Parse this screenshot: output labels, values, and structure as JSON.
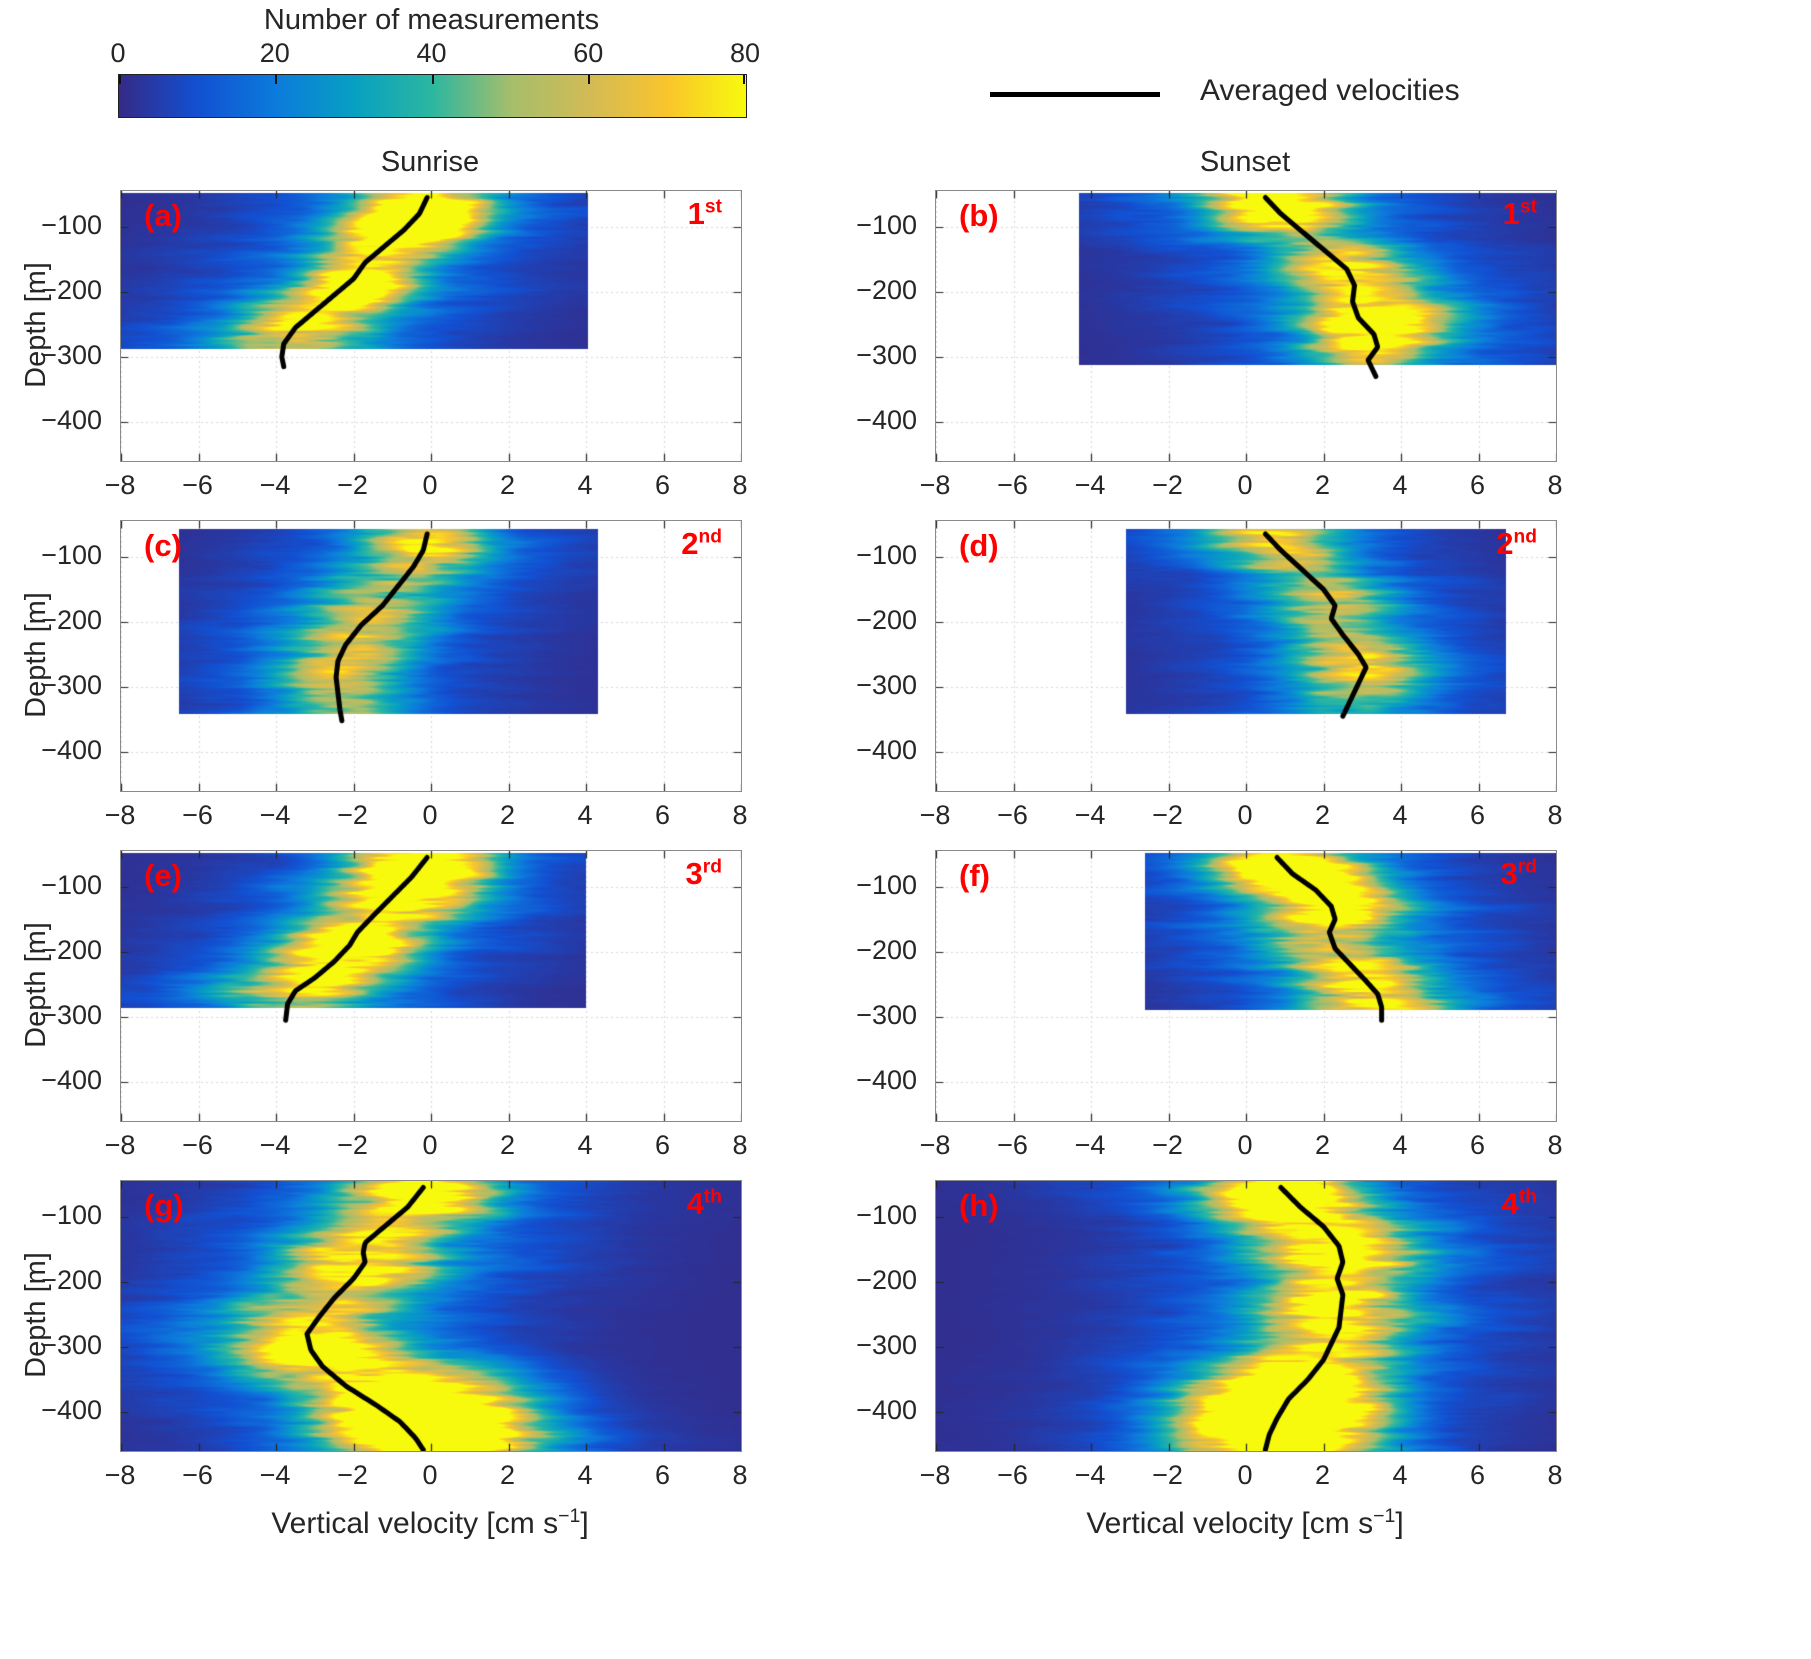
{
  "chart_data": {
    "type": "heatmap",
    "colorbar_title": "Number of measurements",
    "colorbar_range": [
      0,
      80
    ],
    "colorbar_ticks": [
      0,
      20,
      40,
      60,
      80
    ],
    "colormap": [
      "#352a87",
      "#1250d2",
      "#0c7bdc",
      "#07a0c2",
      "#2cb7a0",
      "#a5be6b",
      "#d2bb55",
      "#f9c52c",
      "#f8fa0d"
    ],
    "legend_label": "Averaged velocities",
    "legend_line_color": "#000000",
    "mean_line_color": "#000000",
    "annotation_color": "#ff0000",
    "columns": [
      "Sunrise",
      "Sunset"
    ],
    "xlabel": "Vertical velocity [cm s−1]",
    "xlabel_main": "Vertical velocity [cm s",
    "xlabel_sup": "−1",
    "xlabel_end": "]",
    "ylabel": "Depth [m]",
    "xlim": [
      -8,
      8
    ],
    "xticks": [
      -8,
      -6,
      -4,
      -2,
      0,
      2,
      4,
      6,
      8
    ],
    "ylim": [
      -460,
      -45
    ],
    "yticks": [
      -100,
      -200,
      -300,
      -400
    ],
    "grid": true,
    "panels": [
      {
        "id": "a",
        "tag": "(a)",
        "ordinal_num": "1",
        "ordinal_sup": "st",
        "column": "Sunrise",
        "extent": {
          "v": [
            -8,
            4.05
          ],
          "depth": [
            -48,
            -288
          ]
        },
        "ridge": {
          "amp": 30,
          "s1": 1.2,
          "halo": 18,
          "s2": 3.1
        },
        "hotspots": [
          {
            "v": -0.3,
            "d": -80,
            "amp": 72,
            "sx": 1.1,
            "sy": 26
          },
          {
            "v": -1.9,
            "d": -185,
            "amp": 68,
            "sx": 0.9,
            "sy": 22
          },
          {
            "v": -0.8,
            "d": -120,
            "amp": 42,
            "sx": 1.2,
            "sy": 25
          },
          {
            "v": -3.2,
            "d": -240,
            "amp": 30,
            "sx": 1.2,
            "sy": 28
          }
        ],
        "mean_profile": {
          "depth": [
            -55,
            -80,
            -105,
            -130,
            -155,
            -180,
            -205,
            -230,
            -255,
            -280,
            -300,
            -315
          ],
          "v": [
            -0.1,
            -0.3,
            -0.7,
            -1.2,
            -1.7,
            -2.0,
            -2.5,
            -3.0,
            -3.5,
            -3.8,
            -3.85,
            -3.8
          ]
        }
      },
      {
        "id": "b",
        "tag": "(b)",
        "ordinal_num": "1",
        "ordinal_sup": "st",
        "column": "Sunset",
        "extent": {
          "v": [
            -4.3,
            8
          ],
          "depth": [
            -48,
            -312
          ]
        },
        "ridge": {
          "amp": 30,
          "s1": 1.2,
          "halo": 18,
          "s2": 3.1
        },
        "hotspots": [
          {
            "v": 0.9,
            "d": -70,
            "amp": 62,
            "sx": 1.1,
            "sy": 24
          },
          {
            "v": 3.2,
            "d": -265,
            "amp": 55,
            "sx": 1.1,
            "sy": 28
          },
          {
            "v": 2.6,
            "d": -160,
            "amp": 36,
            "sx": 1.1,
            "sy": 25
          },
          {
            "v": 4.0,
            "d": -230,
            "amp": 28,
            "sx": 1.3,
            "sy": 30
          }
        ],
        "mean_profile": {
          "depth": [
            -55,
            -80,
            -110,
            -140,
            -165,
            -190,
            -215,
            -240,
            -265,
            -285,
            -305,
            -330
          ],
          "v": [
            0.5,
            0.9,
            1.5,
            2.1,
            2.6,
            2.8,
            2.75,
            2.9,
            3.3,
            3.4,
            3.15,
            3.35
          ]
        }
      },
      {
        "id": "c",
        "tag": "(c)",
        "ordinal_num": "2",
        "ordinal_sup": "nd",
        "column": "Sunrise",
        "extent": {
          "v": [
            -6.5,
            4.3
          ],
          "depth": [
            -58,
            -342
          ]
        },
        "ridge": {
          "amp": 26,
          "s1": 1.3,
          "halo": 14,
          "s2": 3.0
        },
        "hotspots": [
          {
            "v": -0.1,
            "d": -85,
            "amp": 38,
            "sx": 1.0,
            "sy": 24
          },
          {
            "v": -1.5,
            "d": -200,
            "amp": 26,
            "sx": 1.2,
            "sy": 30
          },
          {
            "v": -2.4,
            "d": -280,
            "amp": 24,
            "sx": 1.1,
            "sy": 30
          }
        ],
        "mean_profile": {
          "depth": [
            -65,
            -90,
            -115,
            -145,
            -175,
            -205,
            -235,
            -260,
            -285,
            -310,
            -335,
            -352
          ],
          "v": [
            -0.1,
            -0.2,
            -0.45,
            -0.85,
            -1.25,
            -1.8,
            -2.2,
            -2.4,
            -2.45,
            -2.4,
            -2.35,
            -2.3
          ]
        }
      },
      {
        "id": "d",
        "tag": "(d)",
        "ordinal_num": "2",
        "ordinal_sup": "nd",
        "column": "Sunset",
        "extent": {
          "v": [
            -3.1,
            6.7
          ],
          "depth": [
            -58,
            -342
          ]
        },
        "ridge": {
          "amp": 26,
          "s1": 1.3,
          "halo": 14,
          "s2": 3.0
        },
        "hotspots": [
          {
            "v": 1.0,
            "d": -80,
            "amp": 35,
            "sx": 1.0,
            "sy": 24
          },
          {
            "v": 3.0,
            "d": -265,
            "amp": 40,
            "sx": 1.1,
            "sy": 28
          },
          {
            "v": 2.3,
            "d": -170,
            "amp": 32,
            "sx": 1.0,
            "sy": 24
          }
        ],
        "mean_profile": {
          "depth": [
            -65,
            -90,
            -120,
            -150,
            -175,
            -195,
            -220,
            -250,
            -270,
            -295,
            -320,
            -345
          ],
          "v": [
            0.5,
            0.9,
            1.45,
            2.0,
            2.3,
            2.2,
            2.5,
            2.9,
            3.1,
            2.9,
            2.7,
            2.5
          ]
        }
      },
      {
        "id": "e",
        "tag": "(e)",
        "ordinal_num": "3",
        "ordinal_sup": "rd",
        "column": "Sunrise",
        "extent": {
          "v": [
            -8,
            4.0
          ],
          "depth": [
            -48,
            -286
          ]
        },
        "ridge": {
          "amp": 32,
          "s1": 1.25,
          "halo": 18,
          "s2": 3.1
        },
        "hotspots": [
          {
            "v": -0.2,
            "d": -75,
            "amp": 76,
            "sx": 1.2,
            "sy": 26
          },
          {
            "v": -1.9,
            "d": -185,
            "amp": 70,
            "sx": 1.0,
            "sy": 24
          },
          {
            "v": -0.9,
            "d": -120,
            "amp": 46,
            "sx": 1.2,
            "sy": 26
          },
          {
            "v": -3.0,
            "d": -235,
            "amp": 32,
            "sx": 1.2,
            "sy": 26
          }
        ],
        "mean_profile": {
          "depth": [
            -55,
            -85,
            -115,
            -145,
            -170,
            -190,
            -215,
            -240,
            -260,
            -280,
            -305
          ],
          "v": [
            -0.1,
            -0.5,
            -1.0,
            -1.5,
            -1.9,
            -2.1,
            -2.5,
            -3.0,
            -3.5,
            -3.7,
            -3.75
          ]
        }
      },
      {
        "id": "f",
        "tag": "(f)",
        "ordinal_num": "3",
        "ordinal_sup": "rd",
        "column": "Sunset",
        "extent": {
          "v": [
            -2.6,
            8
          ],
          "depth": [
            -48,
            -290
          ]
        },
        "ridge": {
          "amp": 34,
          "s1": 1.3,
          "halo": 18,
          "s2": 3.1
        },
        "hotspots": [
          {
            "v": 1.2,
            "d": -75,
            "amp": 72,
            "sx": 1.2,
            "sy": 26
          },
          {
            "v": 2.2,
            "d": -130,
            "amp": 58,
            "sx": 1.1,
            "sy": 24
          },
          {
            "v": 3.1,
            "d": -245,
            "amp": 46,
            "sx": 1.1,
            "sy": 26
          }
        ],
        "mean_profile": {
          "depth": [
            -55,
            -80,
            -105,
            -130,
            -150,
            -170,
            -195,
            -220,
            -245,
            -265,
            -285,
            -305
          ],
          "v": [
            0.8,
            1.2,
            1.8,
            2.2,
            2.3,
            2.15,
            2.3,
            2.7,
            3.1,
            3.4,
            3.5,
            3.5
          ]
        }
      },
      {
        "id": "g",
        "tag": "(g)",
        "ordinal_num": "4",
        "ordinal_sup": "th",
        "column": "Sunrise",
        "extent": {
          "v": [
            -8,
            8
          ],
          "depth": [
            -45,
            -460
          ]
        },
        "ridge": {
          "amp": 30,
          "s1": 1.5,
          "halo": 17,
          "s2": 3.5
        },
        "hotspots": [
          {
            "v": -0.2,
            "d": -70,
            "amp": 66,
            "sx": 1.2,
            "sy": 26
          },
          {
            "v": 0.3,
            "d": -425,
            "amp": 85,
            "sx": 1.7,
            "sy": 50
          },
          {
            "v": -0.5,
            "d": -380,
            "amp": 55,
            "sx": 1.5,
            "sy": 40
          },
          {
            "v": -1.8,
            "d": -170,
            "amp": 40,
            "sx": 1.3,
            "sy": 35
          },
          {
            "v": -3.0,
            "d": -280,
            "amp": 45,
            "sx": 1.3,
            "sy": 40
          }
        ],
        "mean_profile": {
          "depth": [
            -55,
            -85,
            -115,
            -140,
            -155,
            -170,
            -195,
            -225,
            -255,
            -280,
            -305,
            -330,
            -360,
            -390,
            -415,
            -440,
            -458
          ],
          "v": [
            -0.2,
            -0.6,
            -1.2,
            -1.7,
            -1.75,
            -1.7,
            -2.0,
            -2.5,
            -2.9,
            -3.2,
            -3.1,
            -2.8,
            -2.2,
            -1.4,
            -0.8,
            -0.4,
            -0.2
          ]
        }
      },
      {
        "id": "h",
        "tag": "(h)",
        "ordinal_num": "4",
        "ordinal_sup": "th",
        "column": "Sunset",
        "extent": {
          "v": [
            -8,
            8
          ],
          "depth": [
            -45,
            -460
          ]
        },
        "ridge": {
          "amp": 30,
          "s1": 1.5,
          "halo": 17,
          "s2": 3.5
        },
        "hotspots": [
          {
            "v": 1.0,
            "d": -80,
            "amp": 66,
            "sx": 1.3,
            "sy": 28
          },
          {
            "v": 0.8,
            "d": -425,
            "amp": 88,
            "sx": 1.7,
            "sy": 50
          },
          {
            "v": 1.2,
            "d": -380,
            "amp": 60,
            "sx": 1.5,
            "sy": 40
          },
          {
            "v": 2.5,
            "d": -170,
            "amp": 46,
            "sx": 1.2,
            "sy": 35
          },
          {
            "v": 2.3,
            "d": -260,
            "amp": 40,
            "sx": 1.2,
            "sy": 40
          }
        ],
        "mean_profile": {
          "depth": [
            -55,
            -85,
            -115,
            -145,
            -170,
            -195,
            -220,
            -245,
            -270,
            -295,
            -320,
            -350,
            -380,
            -410,
            -435,
            -458
          ],
          "v": [
            0.9,
            1.4,
            2.0,
            2.4,
            2.5,
            2.35,
            2.5,
            2.45,
            2.4,
            2.2,
            2.0,
            1.6,
            1.1,
            0.8,
            0.6,
            0.5
          ]
        }
      }
    ]
  }
}
